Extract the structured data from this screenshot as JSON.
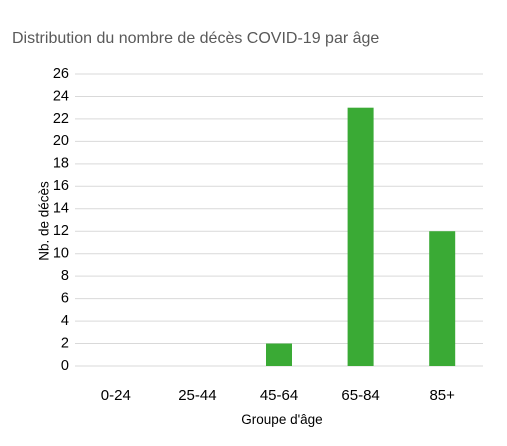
{
  "chart_data": {
    "type": "bar",
    "title": "Distribution du nombre de décès COVID-19 par âge",
    "xlabel": "Groupe d'âge",
    "ylabel": "Nb. de décès",
    "categories": [
      "0-24",
      "25-44",
      "45-64",
      "65-84",
      "85+"
    ],
    "values": [
      0,
      0,
      2,
      23,
      12
    ],
    "ylim": [
      0,
      26
    ],
    "yticks": [
      0,
      2,
      4,
      6,
      8,
      10,
      12,
      14,
      16,
      18,
      20,
      22,
      24,
      26
    ],
    "grid": true,
    "legend": "none",
    "bar_color": "#3aaa35",
    "grid_color": "#d9d9d9"
  }
}
